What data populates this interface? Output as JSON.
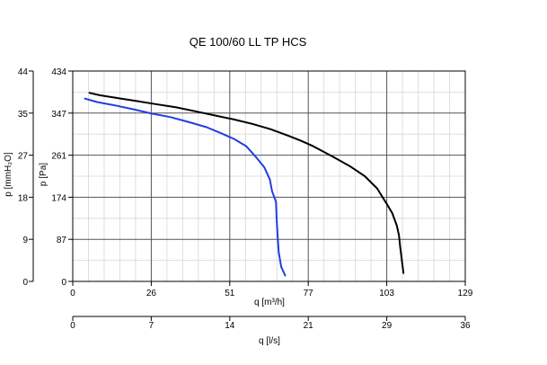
{
  "chart_data": {
    "type": "line",
    "title": "QE 100/60 LL TP HCS",
    "xlabel": "q [m³/h]",
    "x2label": "q [l/s]",
    "ylabel": "p [Pa]",
    "y2label": "p [mmH₂O]",
    "xlim": [
      0,
      129
    ],
    "ylim": [
      0,
      434
    ],
    "x_ticks": [
      "0",
      "26",
      "51",
      "77",
      "103",
      "129"
    ],
    "x2_ticks": [
      "0",
      "7",
      "14",
      "21",
      "29",
      "36"
    ],
    "y_ticks": [
      "0",
      "87",
      "174",
      "261",
      "347",
      "434"
    ],
    "y2_ticks": [
      "0",
      "9",
      "18",
      "27",
      "35",
      "44"
    ],
    "grid": true,
    "series": [
      {
        "color": "#000000",
        "points": [
          [
            5.5,
            389
          ],
          [
            9,
            384
          ],
          [
            15,
            378
          ],
          [
            21,
            372
          ],
          [
            27,
            366
          ],
          [
            34,
            359
          ],
          [
            41,
            350
          ],
          [
            47,
            342
          ],
          [
            53,
            334
          ],
          [
            59,
            325
          ],
          [
            65,
            314
          ],
          [
            71,
            300
          ],
          [
            75,
            290
          ],
          [
            79,
            279
          ],
          [
            85,
            259
          ],
          [
            91,
            238
          ],
          [
            96,
            217
          ],
          [
            100,
            192
          ],
          [
            103,
            162
          ],
          [
            105,
            141
          ],
          [
            106.5,
            115
          ],
          [
            107.2,
            95
          ],
          [
            107.6,
            72
          ],
          [
            108.2,
            42
          ],
          [
            108.7,
            17
          ]
        ]
      },
      {
        "color": "#1f3fe0",
        "points": [
          [
            4,
            377
          ],
          [
            8,
            370
          ],
          [
            14,
            363
          ],
          [
            20,
            355
          ],
          [
            26,
            346
          ],
          [
            32,
            339
          ],
          [
            38,
            329
          ],
          [
            44,
            318
          ],
          [
            49,
            305
          ],
          [
            53,
            294
          ],
          [
            57,
            279
          ],
          [
            60,
            258
          ],
          [
            63,
            235
          ],
          [
            64.8,
            210
          ],
          [
            65.5,
            186
          ],
          [
            66.8,
            164
          ],
          [
            67,
            130
          ],
          [
            67.3,
            96
          ],
          [
            67.7,
            60
          ],
          [
            68.5,
            30
          ],
          [
            69.8,
            12
          ]
        ]
      }
    ]
  }
}
